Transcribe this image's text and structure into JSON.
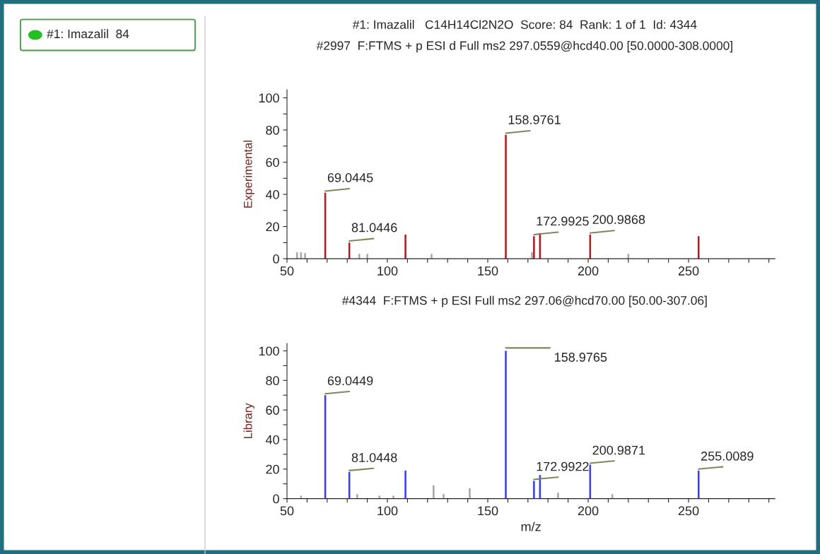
{
  "chart_data": [
    {
      "type": "bar",
      "title": "#1: Imazalil   C14H14Cl2N2O  Score: 84  Rank: 1 of 1  Id: 4344",
      "subtitle": "#2997  F:FTMS + p ESI d Full ms2 297.0559@hcd40.00 [50.0000-308.0000]",
      "ylabel": "Experimental",
      "series": [
        {
          "color": "#b01c22",
          "x": [
            69.0445,
            81.0446,
            109,
            158.9761,
            173,
            176,
            200.9868,
            255
          ],
          "values": [
            41,
            10,
            15,
            77,
            14,
            16,
            15,
            14
          ]
        },
        {
          "color": "#a8a8a8",
          "x": [
            55,
            57,
            59,
            86,
            90,
            122,
            172,
            220
          ],
          "values": [
            4,
            4,
            3.5,
            3,
            3,
            3,
            4,
            3
          ]
        }
      ],
      "annotations": [
        "#1: Imazalil  84",
        {
          "text": "69.0445",
          "x": 69.0445,
          "y": 41
        },
        {
          "text": "81.0446",
          "x": 81.0446,
          "y": 10
        },
        {
          "text": "158.9761",
          "x": 158.9761,
          "y": 77
        },
        {
          "text": "172.9925",
          "x": 173,
          "y": 14
        },
        {
          "text": "200.9868",
          "x": 200.9868,
          "y": 15
        }
      ],
      "xlim": [
        50,
        293
      ],
      "ylim": [
        0,
        105
      ],
      "xticks": [
        50,
        {
          "value": 60,
          "label": null
        },
        {
          "value": 70,
          "label": null
        },
        {
          "value": 80,
          "label": null
        },
        {
          "value": 90,
          "label": null
        },
        100,
        {
          "value": 110,
          "label": null
        },
        {
          "value": 120,
          "label": null
        },
        {
          "value": 130,
          "label": null
        },
        {
          "value": 140,
          "label": null
        },
        150,
        {
          "value": 160,
          "label": null
        },
        {
          "value": 170,
          "label": null
        },
        {
          "value": 180,
          "label": null
        },
        {
          "value": 190,
          "label": null
        },
        200,
        {
          "value": 210,
          "label": null
        },
        {
          "value": 220,
          "label": null
        },
        {
          "value": 230,
          "label": null
        },
        {
          "value": 240,
          "label": null
        },
        250,
        {
          "value": 260,
          "label": null
        },
        {
          "value": 270,
          "label": null
        },
        {
          "value": 280,
          "label": null
        },
        {
          "value": 290,
          "label": null
        }
      ],
      "yticks": [
        0,
        {
          "value": 10,
          "label": null
        },
        20,
        {
          "value": 30,
          "label": null
        },
        40,
        {
          "value": 50,
          "label": null
        },
        60,
        {
          "value": 70,
          "label": null
        },
        80,
        {
          "value": 90,
          "label": null
        },
        100
      ],
      "grid": false,
      "legend": false
    },
    {
      "type": "bar",
      "title": "#4344  F:FTMS + p ESI Full ms2 297.06@hcd70.00 [50.00-307.06]",
      "xlabel": "m/z",
      "ylabel": "Library",
      "series": [
        {
          "color": "#3c3cf0",
          "x": [
            69.0449,
            81.0448,
            109,
            158.9765,
            173,
            176,
            200.9871,
            255.0089
          ],
          "values": [
            70,
            18,
            19,
            100,
            12,
            16,
            23,
            19
          ]
        },
        {
          "color": "#a8a8a8",
          "x": [
            57,
            85,
            96,
            103,
            123,
            128,
            141,
            185,
            212
          ],
          "values": [
            2,
            3,
            2,
            2,
            9,
            3,
            7,
            4,
            3
          ]
        }
      ],
      "annotations": [
        {
          "text": "69.0449",
          "x": 69.0449,
          "y": 70
        },
        {
          "text": "81.0448",
          "x": 81.0448,
          "y": 18
        },
        {
          "text": "158.9765",
          "x": 158.9765,
          "y": 100
        },
        {
          "text": "172.9922",
          "x": 173,
          "y": 12
        },
        {
          "text": "200.9871",
          "x": 200.9871,
          "y": 23
        },
        {
          "text": "255.0089",
          "x": 255.0089,
          "y": 19
        }
      ],
      "xlim": [
        50,
        293
      ],
      "ylim": [
        0,
        105
      ],
      "xticks": [
        50,
        {
          "value": 60,
          "label": null
        },
        {
          "value": 70,
          "label": null
        },
        {
          "value": 80,
          "label": null
        },
        {
          "value": 90,
          "label": null
        },
        100,
        {
          "value": 110,
          "label": null
        },
        {
          "value": 120,
          "label": null
        },
        {
          "value": 130,
          "label": null
        },
        {
          "value": 140,
          "label": null
        },
        150,
        {
          "value": 160,
          "label": null
        },
        {
          "value": 170,
          "label": null
        },
        {
          "value": 180,
          "label": null
        },
        {
          "value": 190,
          "label": null
        },
        200,
        {
          "value": 210,
          "label": null
        },
        {
          "value": 220,
          "label": null
        },
        {
          "value": 230,
          "label": null
        },
        {
          "value": 240,
          "label": null
        },
        250,
        {
          "value": 260,
          "label": null
        },
        {
          "value": 270,
          "label": null
        },
        {
          "value": 280,
          "label": null
        },
        {
          "value": 290,
          "label": null
        }
      ],
      "yticks": [
        0,
        {
          "value": 10,
          "label": null
        },
        20,
        {
          "value": 30,
          "label": null
        },
        40,
        {
          "value": 50,
          "label": null
        },
        60,
        {
          "value": 70,
          "label": null
        },
        80,
        {
          "value": 90,
          "label": null
        },
        100
      ],
      "grid": false,
      "legend": false
    }
  ]
}
